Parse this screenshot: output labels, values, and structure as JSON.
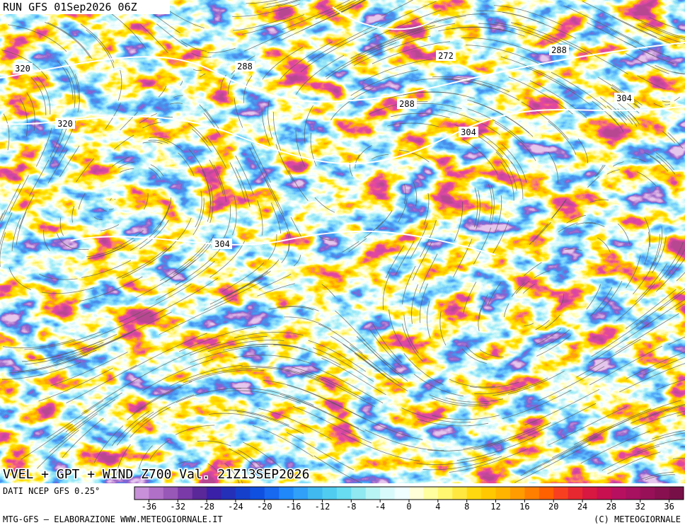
{
  "header": {
    "title": "RUN GFS 01Sep2026 06Z"
  },
  "map": {
    "title": "VVEL + GPT + WIND Z700 Val. 21Z13SEP2026",
    "contour_labels": [
      320,
      320,
      288,
      272,
      288,
      288,
      304,
      304,
      304
    ]
  },
  "legend": {
    "ticks": [
      -36,
      -32,
      -28,
      -24,
      -20,
      -16,
      -12,
      -8,
      -4,
      0,
      4,
      8,
      12,
      16,
      20,
      24,
      28,
      32,
      36
    ],
    "colors": [
      "#c890d8",
      "#b070c8",
      "#9858b8",
      "#7a3aa8",
      "#5a2898",
      "#3a20a8",
      "#2430b8",
      "#1440cc",
      "#1050e0",
      "#1868f0",
      "#2088f8",
      "#30a0f8",
      "#40b8f0",
      "#50ccf0",
      "#68dcf0",
      "#90e8f0",
      "#b8f4f4",
      "#d8fafa",
      "#f0ffff",
      "#ffffd8",
      "#ffffa0",
      "#fff870",
      "#ffe840",
      "#ffd810",
      "#ffc800",
      "#ffb400",
      "#ff9c00",
      "#ff8000",
      "#ff6000",
      "#f84020",
      "#e82830",
      "#d81840",
      "#c81050",
      "#b81060",
      "#a81060",
      "#981058",
      "#881050",
      "#781048"
    ]
  },
  "footer": {
    "source": "DATI NCEP GFS 0.25°",
    "credit": "MTG-GFS — ELABORAZIONE WWW.METEOGIORNALE.IT",
    "copyright": "(C) METEOGIORNALE"
  }
}
